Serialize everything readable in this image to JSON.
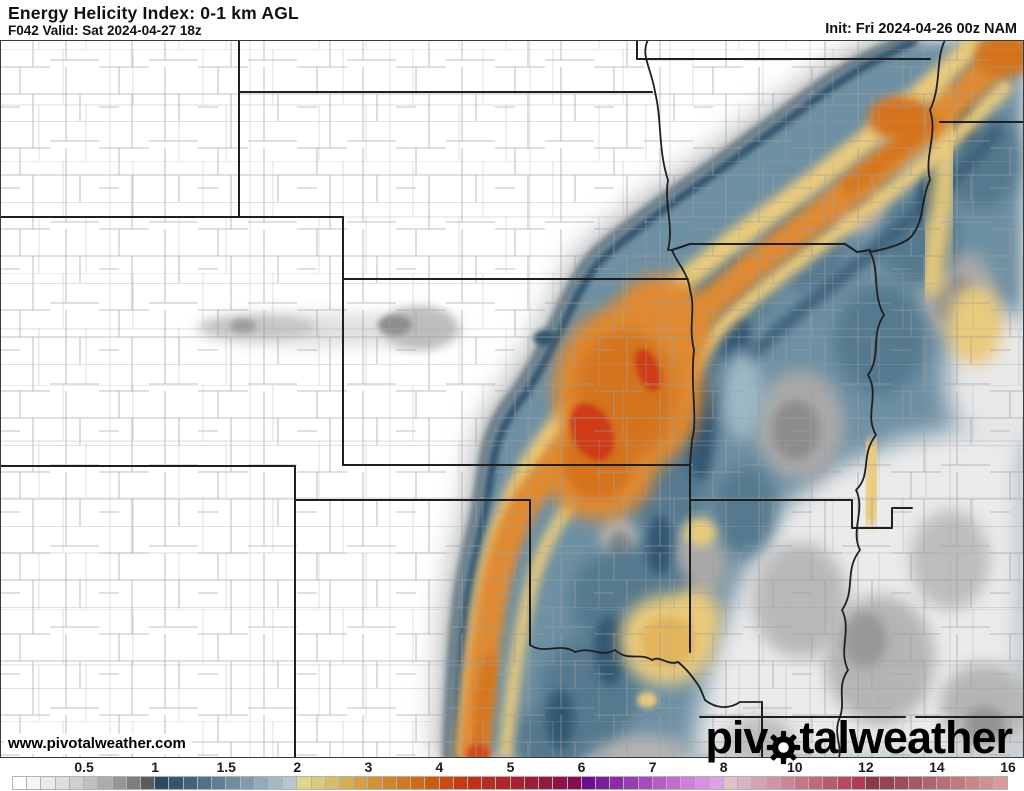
{
  "header": {
    "title": "Energy Helicity Index: 0-1 km AGL",
    "valid": "F042 Valid: Sat 2024-04-27 18z",
    "init": "Init: Fri 2024-04-26 00z NAM"
  },
  "watermark": {
    "text": "www.pivotalweather.com"
  },
  "logo": {
    "part1": "piv",
    "part2": "tal",
    "part3": " weather"
  },
  "map": {
    "state_border_color": "#1f1f1f",
    "county_line_color": "#9e9e9e",
    "field_colors": {
      "low_gray": "#9a9a9a",
      "blue": "#54798e",
      "dark_blue_edge": "#2e5069",
      "yellow": "#eacb7c",
      "orange": "#df8a30",
      "red_core": "#ce3a16"
    }
  },
  "colorbar": {
    "ticks": [
      "0.5",
      "1",
      "1.5",
      "2",
      "3",
      "4",
      "5",
      "6",
      "7",
      "8",
      "10",
      "12",
      "14",
      "16"
    ],
    "cells": [
      "#ffffff",
      "#f5f5f5",
      "#eaeaea",
      "#dedede",
      "#cfcfcf",
      "#bfbfbf",
      "#acacac",
      "#969696",
      "#7d7d7d",
      "#5a5a5a",
      "#2d4961",
      "#35566d",
      "#42637a",
      "#507187",
      "#5e7f94",
      "#6e8da1",
      "#7f9bad",
      "#91aab9",
      "#a4b9c4",
      "#b6c7cf",
      "#ded88b",
      "#dbca78",
      "#d9bc66",
      "#d7ae55",
      "#d5a045",
      "#d39237",
      "#d1852b",
      "#cf7820",
      "#cd6b15",
      "#cb5e0d",
      "#cf4a0e",
      "#c73b12",
      "#bf3218",
      "#b72b20",
      "#af2628",
      "#a72130",
      "#9f1c38",
      "#971740",
      "#8f1248",
      "#870d50",
      "#6f0c90",
      "#7d1c9b",
      "#8b2ca6",
      "#993cb1",
      "#a74cbc",
      "#b55cc6",
      "#c36cd0",
      "#d17dda",
      "#da8ee2",
      "#e19fe9",
      "#dfc2c7",
      "#dab3bb",
      "#d5a4af",
      "#d095a3",
      "#cb8697",
      "#c57788",
      "#c0687c",
      "#bb5970",
      "#b64a64",
      "#b13b54",
      "#8d3846",
      "#96424f",
      "#9f4d59",
      "#a85862",
      "#b1636c",
      "#b96e76",
      "#c1797e",
      "#c98488",
      "#d18f92",
      "#d99a9c"
    ]
  }
}
